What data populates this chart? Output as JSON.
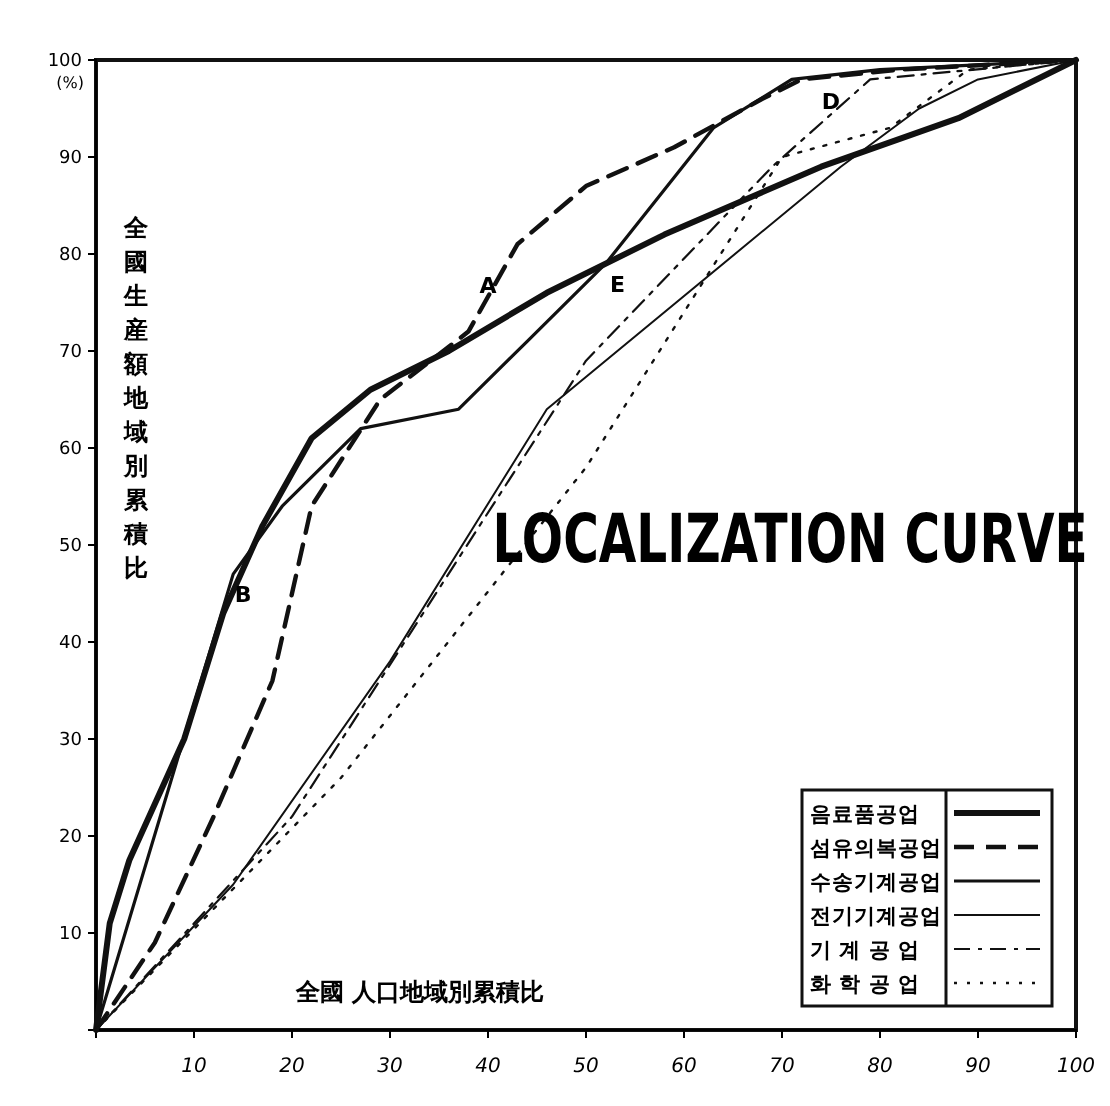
{
  "chart_data": {
    "type": "line",
    "title": "LOCALIZATION CURVE",
    "xlabel": "全國 人口地域別累積比",
    "ylabel": "全國生産額地域別累積比",
    "xlim": [
      0,
      100
    ],
    "ylim": [
      0,
      100
    ],
    "xticks": [
      10,
      20,
      30,
      40,
      50,
      60,
      70,
      80,
      90,
      100
    ],
    "yticks": [
      10,
      20,
      30,
      40,
      50,
      60,
      70,
      80,
      90,
      100
    ],
    "grid": false,
    "legend": "bottom right",
    "marker": "none",
    "annotations": [
      {
        "text": "A",
        "x": 40,
        "y": 76
      },
      {
        "text": "B",
        "x": 14,
        "y": 47
      },
      {
        "text": "D",
        "x": 75,
        "y": 95
      },
      {
        "text": "E",
        "x": 52,
        "y": 79
      },
      "(%)"
    ],
    "series": [
      {
        "name": "음료품공업",
        "color": "#111111",
        "line_style": "solid",
        "x": [
          0,
          1.4,
          3.4,
          9,
          13,
          17,
          22,
          28,
          36,
          46,
          58,
          74,
          88,
          100
        ],
        "values": [
          0,
          11,
          17.5,
          30,
          43,
          52,
          61,
          66,
          70,
          76,
          82,
          89,
          94,
          100
        ]
      },
      {
        "name": "섬유의복공업",
        "color": "#111111",
        "line_style": "dashed",
        "x": [
          0,
          6,
          12,
          18,
          22,
          29,
          38,
          43,
          50,
          59,
          68,
          72,
          82,
          100
        ],
        "values": [
          0,
          9,
          22,
          36,
          54,
          65,
          72,
          81,
          87,
          91,
          96,
          98,
          99,
          100
        ]
      },
      {
        "name": "수송기계공업",
        "color": "#111111",
        "line_style": "solid",
        "x": [
          0,
          14,
          19,
          27,
          37,
          44,
          52,
          63,
          71,
          80,
          100
        ],
        "values": [
          0,
          47,
          54,
          62,
          64,
          71,
          79,
          93,
          98,
          99,
          100
        ]
      },
      {
        "name": "전기기계공업",
        "color": "#111111",
        "line_style": "solid",
        "x": [
          0,
          14,
          30,
          46,
          76,
          84,
          90,
          100
        ],
        "values": [
          0,
          15,
          38,
          64,
          89,
          95,
          98,
          100
        ]
      },
      {
        "name": "기 계 공 업",
        "color": "#111111",
        "line_style": "dashdot",
        "x": [
          0,
          20,
          50,
          69,
          79,
          100
        ],
        "values": [
          0,
          22,
          69,
          89,
          98,
          100
        ]
      },
      {
        "name": "화 학 공 업",
        "color": "#111111",
        "line_style": "dotted",
        "x": [
          0,
          25,
          50,
          70,
          81,
          89,
          100
        ],
        "values": [
          0,
          26,
          58,
          90,
          93,
          99,
          100
        ]
      }
    ]
  }
}
